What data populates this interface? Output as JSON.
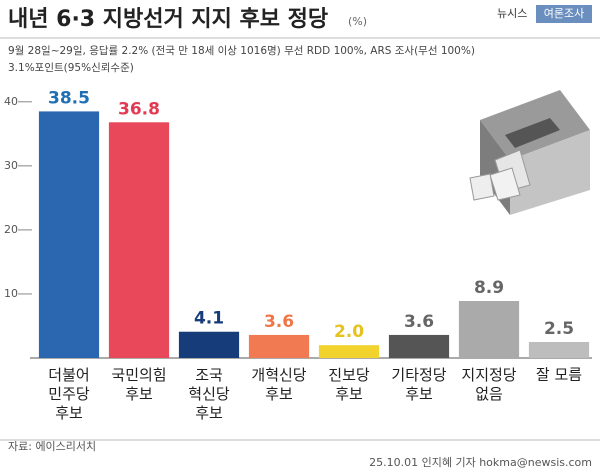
{
  "chart_data": {
    "type": "bar",
    "title": "내년 6·3 지방선거 지지 후보 정당",
    "unit": "(%)",
    "brand": "뉴시스",
    "badge": "여론조사",
    "subtitle": [
      "9월 28일~29일, 응답률 2.2% (전국 만 18세 이상 1016명) 무선 RDD 100%, ARS 조사(무선 100%)",
      "3.1%포인트(95%신뢰수준)"
    ],
    "categories": [
      "더불어\n민주당\n후보",
      "국민의힘\n후보",
      "조국\n혁신당\n후보",
      "개혁신당\n후보",
      "진보당\n후보",
      "기타정당\n후보",
      "지지정당\n없음",
      "잘 모름"
    ],
    "values": [
      38.5,
      36.8,
      4.1,
      3.6,
      2.0,
      3.6,
      8.9,
      2.5
    ],
    "value_labels": [
      "38.5",
      "36.8",
      "4.1",
      "3.6",
      "2.0",
      "3.6",
      "8.9",
      "2.5"
    ],
    "colors": [
      "#2b66b0",
      "#e9475a",
      "#173c7a",
      "#f27a52",
      "#f2d22c",
      "#555555",
      "#aaaaaa",
      "#bdbdbd"
    ],
    "label_colors": [
      "#1f6fb3",
      "#e23a52",
      "#173c7a",
      "#ef7648",
      "#e6c21e",
      "#666666",
      "#666666",
      "#666666"
    ],
    "ylim": [
      0,
      42
    ],
    "yticks": [
      10,
      20,
      30,
      40
    ],
    "source": "자료: 에이스리서치",
    "credit": "25.10.01 인지혜 기자 hokma@newsis.com"
  }
}
